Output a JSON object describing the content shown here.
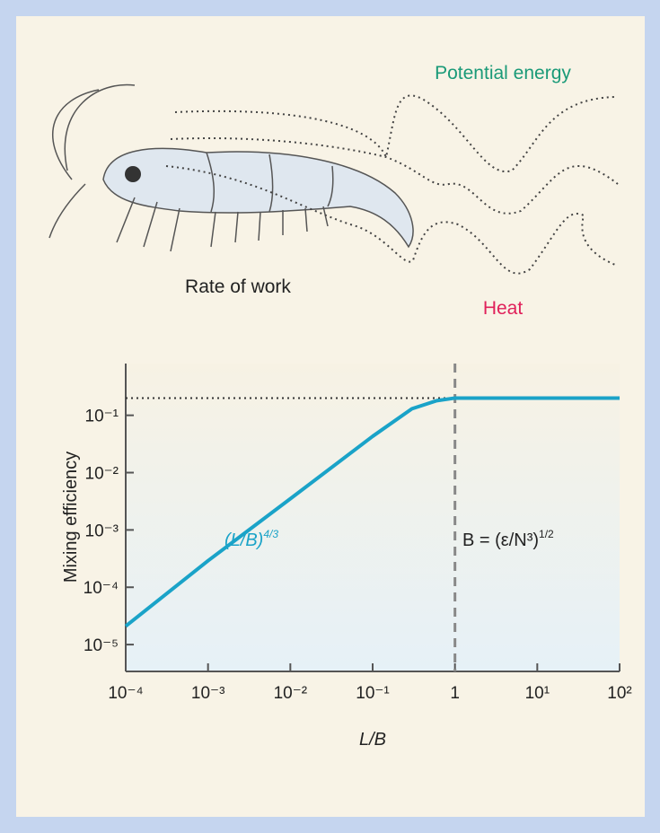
{
  "illustration": {
    "labels": {
      "potential_energy": "Potential energy",
      "rate_of_work": "Rate of work",
      "heat": "Heat"
    }
  },
  "chart_data": {
    "type": "line",
    "log_x": true,
    "log_y": true,
    "x_label": "L/B",
    "y_label": "Mixing efficiency",
    "xlim": [
      0.0001,
      100
    ],
    "ylim": [
      3.4e-06,
      0.8
    ],
    "xticks": [
      {
        "value": 0.0001,
        "label": "10⁻⁴"
      },
      {
        "value": 0.001,
        "label": "10⁻³"
      },
      {
        "value": 0.01,
        "label": "10⁻²"
      },
      {
        "value": 0.1,
        "label": "10⁻¹"
      },
      1,
      {
        "value": 10,
        "label": "10¹"
      },
      {
        "value": 100,
        "label": "10²"
      }
    ],
    "yticks": [
      {
        "value": 1e-05,
        "label": "10⁻⁵"
      },
      {
        "value": 0.0001,
        "label": "10⁻⁴"
      },
      {
        "value": 0.001,
        "label": "10⁻³"
      },
      {
        "value": 0.01,
        "label": "10⁻²"
      },
      {
        "value": 0.1,
        "label": "10⁻¹"
      }
    ],
    "x": [
      0.0001,
      0.001,
      0.01,
      0.1,
      0.3,
      0.6,
      1,
      10,
      100
    ],
    "series": [
      {
        "color": "#1aa3c8",
        "values": [
          2.1e-05,
          0.00029,
          0.0035,
          0.043,
          0.13,
          0.18,
          0.2,
          0.2,
          0.2
        ]
      }
    ],
    "reference_lines": {
      "x": 1,
      "y": 0.2
    },
    "annotations": {
      "slope": {
        "base": "(L/B)",
        "sup": "4/3"
      },
      "scale": {
        "base": "B = (ε/N³)",
        "sup": "1/2"
      }
    }
  }
}
